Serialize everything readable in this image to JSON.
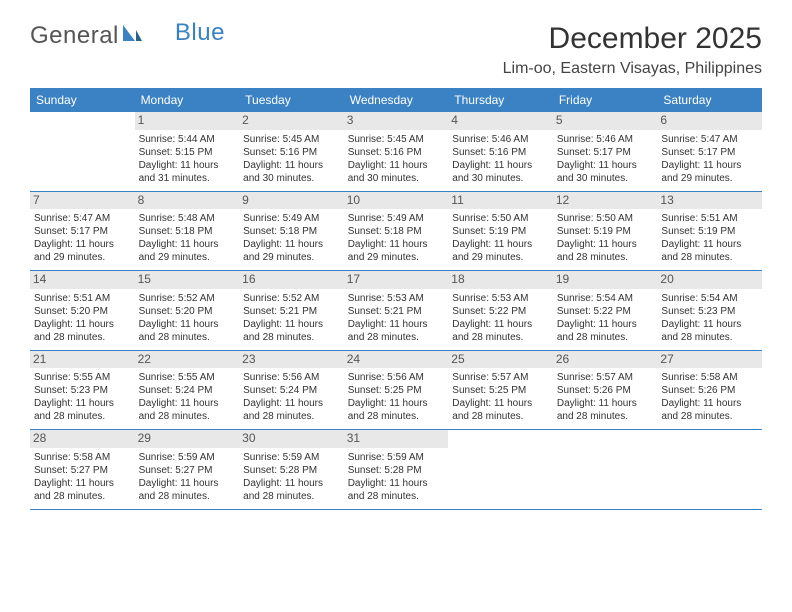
{
  "logo": {
    "text1": "General",
    "text2": "Blue"
  },
  "title": "December 2025",
  "location": "Lim-oo, Eastern Visayas, Philippines",
  "colors": {
    "header_bg": "#3b82c4",
    "header_fg": "#ffffff",
    "daynum_bg": "#e8e8e8",
    "text": "#333333",
    "divider": "#3b82c4"
  },
  "fonts": {
    "title_size": 30,
    "location_size": 16,
    "header_size": 12,
    "daynum_size": 12,
    "body_size": 10
  },
  "day_headers": [
    "Sunday",
    "Monday",
    "Tuesday",
    "Wednesday",
    "Thursday",
    "Friday",
    "Saturday"
  ],
  "weeks": [
    [
      {
        "day": "",
        "sunrise": "",
        "sunset": "",
        "daylight": ""
      },
      {
        "day": "1",
        "sunrise": "Sunrise: 5:44 AM",
        "sunset": "Sunset: 5:15 PM",
        "daylight": "Daylight: 11 hours and 31 minutes."
      },
      {
        "day": "2",
        "sunrise": "Sunrise: 5:45 AM",
        "sunset": "Sunset: 5:16 PM",
        "daylight": "Daylight: 11 hours and 30 minutes."
      },
      {
        "day": "3",
        "sunrise": "Sunrise: 5:45 AM",
        "sunset": "Sunset: 5:16 PM",
        "daylight": "Daylight: 11 hours and 30 minutes."
      },
      {
        "day": "4",
        "sunrise": "Sunrise: 5:46 AM",
        "sunset": "Sunset: 5:16 PM",
        "daylight": "Daylight: 11 hours and 30 minutes."
      },
      {
        "day": "5",
        "sunrise": "Sunrise: 5:46 AM",
        "sunset": "Sunset: 5:17 PM",
        "daylight": "Daylight: 11 hours and 30 minutes."
      },
      {
        "day": "6",
        "sunrise": "Sunrise: 5:47 AM",
        "sunset": "Sunset: 5:17 PM",
        "daylight": "Daylight: 11 hours and 29 minutes."
      }
    ],
    [
      {
        "day": "7",
        "sunrise": "Sunrise: 5:47 AM",
        "sunset": "Sunset: 5:17 PM",
        "daylight": "Daylight: 11 hours and 29 minutes."
      },
      {
        "day": "8",
        "sunrise": "Sunrise: 5:48 AM",
        "sunset": "Sunset: 5:18 PM",
        "daylight": "Daylight: 11 hours and 29 minutes."
      },
      {
        "day": "9",
        "sunrise": "Sunrise: 5:49 AM",
        "sunset": "Sunset: 5:18 PM",
        "daylight": "Daylight: 11 hours and 29 minutes."
      },
      {
        "day": "10",
        "sunrise": "Sunrise: 5:49 AM",
        "sunset": "Sunset: 5:18 PM",
        "daylight": "Daylight: 11 hours and 29 minutes."
      },
      {
        "day": "11",
        "sunrise": "Sunrise: 5:50 AM",
        "sunset": "Sunset: 5:19 PM",
        "daylight": "Daylight: 11 hours and 29 minutes."
      },
      {
        "day": "12",
        "sunrise": "Sunrise: 5:50 AM",
        "sunset": "Sunset: 5:19 PM",
        "daylight": "Daylight: 11 hours and 28 minutes."
      },
      {
        "day": "13",
        "sunrise": "Sunrise: 5:51 AM",
        "sunset": "Sunset: 5:19 PM",
        "daylight": "Daylight: 11 hours and 28 minutes."
      }
    ],
    [
      {
        "day": "14",
        "sunrise": "Sunrise: 5:51 AM",
        "sunset": "Sunset: 5:20 PM",
        "daylight": "Daylight: 11 hours and 28 minutes."
      },
      {
        "day": "15",
        "sunrise": "Sunrise: 5:52 AM",
        "sunset": "Sunset: 5:20 PM",
        "daylight": "Daylight: 11 hours and 28 minutes."
      },
      {
        "day": "16",
        "sunrise": "Sunrise: 5:52 AM",
        "sunset": "Sunset: 5:21 PM",
        "daylight": "Daylight: 11 hours and 28 minutes."
      },
      {
        "day": "17",
        "sunrise": "Sunrise: 5:53 AM",
        "sunset": "Sunset: 5:21 PM",
        "daylight": "Daylight: 11 hours and 28 minutes."
      },
      {
        "day": "18",
        "sunrise": "Sunrise: 5:53 AM",
        "sunset": "Sunset: 5:22 PM",
        "daylight": "Daylight: 11 hours and 28 minutes."
      },
      {
        "day": "19",
        "sunrise": "Sunrise: 5:54 AM",
        "sunset": "Sunset: 5:22 PM",
        "daylight": "Daylight: 11 hours and 28 minutes."
      },
      {
        "day": "20",
        "sunrise": "Sunrise: 5:54 AM",
        "sunset": "Sunset: 5:23 PM",
        "daylight": "Daylight: 11 hours and 28 minutes."
      }
    ],
    [
      {
        "day": "21",
        "sunrise": "Sunrise: 5:55 AM",
        "sunset": "Sunset: 5:23 PM",
        "daylight": "Daylight: 11 hours and 28 minutes."
      },
      {
        "day": "22",
        "sunrise": "Sunrise: 5:55 AM",
        "sunset": "Sunset: 5:24 PM",
        "daylight": "Daylight: 11 hours and 28 minutes."
      },
      {
        "day": "23",
        "sunrise": "Sunrise: 5:56 AM",
        "sunset": "Sunset: 5:24 PM",
        "daylight": "Daylight: 11 hours and 28 minutes."
      },
      {
        "day": "24",
        "sunrise": "Sunrise: 5:56 AM",
        "sunset": "Sunset: 5:25 PM",
        "daylight": "Daylight: 11 hours and 28 minutes."
      },
      {
        "day": "25",
        "sunrise": "Sunrise: 5:57 AM",
        "sunset": "Sunset: 5:25 PM",
        "daylight": "Daylight: 11 hours and 28 minutes."
      },
      {
        "day": "26",
        "sunrise": "Sunrise: 5:57 AM",
        "sunset": "Sunset: 5:26 PM",
        "daylight": "Daylight: 11 hours and 28 minutes."
      },
      {
        "day": "27",
        "sunrise": "Sunrise: 5:58 AM",
        "sunset": "Sunset: 5:26 PM",
        "daylight": "Daylight: 11 hours and 28 minutes."
      }
    ],
    [
      {
        "day": "28",
        "sunrise": "Sunrise: 5:58 AM",
        "sunset": "Sunset: 5:27 PM",
        "daylight": "Daylight: 11 hours and 28 minutes."
      },
      {
        "day": "29",
        "sunrise": "Sunrise: 5:59 AM",
        "sunset": "Sunset: 5:27 PM",
        "daylight": "Daylight: 11 hours and 28 minutes."
      },
      {
        "day": "30",
        "sunrise": "Sunrise: 5:59 AM",
        "sunset": "Sunset: 5:28 PM",
        "daylight": "Daylight: 11 hours and 28 minutes."
      },
      {
        "day": "31",
        "sunrise": "Sunrise: 5:59 AM",
        "sunset": "Sunset: 5:28 PM",
        "daylight": "Daylight: 11 hours and 28 minutes."
      },
      {
        "day": "",
        "sunrise": "",
        "sunset": "",
        "daylight": ""
      },
      {
        "day": "",
        "sunrise": "",
        "sunset": "",
        "daylight": ""
      },
      {
        "day": "",
        "sunrise": "",
        "sunset": "",
        "daylight": ""
      }
    ]
  ]
}
